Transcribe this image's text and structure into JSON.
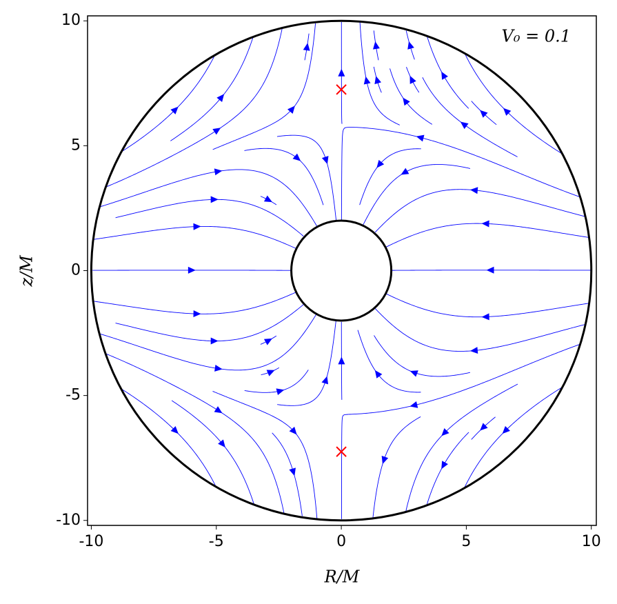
{
  "chart_data": {
    "type": "streamplot",
    "annotation": "V₀ = 0.1",
    "xlabel": "R/M",
    "ylabel": "z/M",
    "xlim": [
      -10.15,
      10.2
    ],
    "ylim": [
      -10.2,
      10.2
    ],
    "xticks": [
      -10,
      -5,
      0,
      5,
      10
    ],
    "yticks": [
      -10,
      -5,
      0,
      5,
      10
    ],
    "circle_radii": [
      10,
      2
    ],
    "line_color": "#0000ff",
    "points": {
      "x": [
        0,
        0
      ],
      "y": [
        7.25,
        -7.25
      ],
      "color": "#ff0000"
    }
  }
}
